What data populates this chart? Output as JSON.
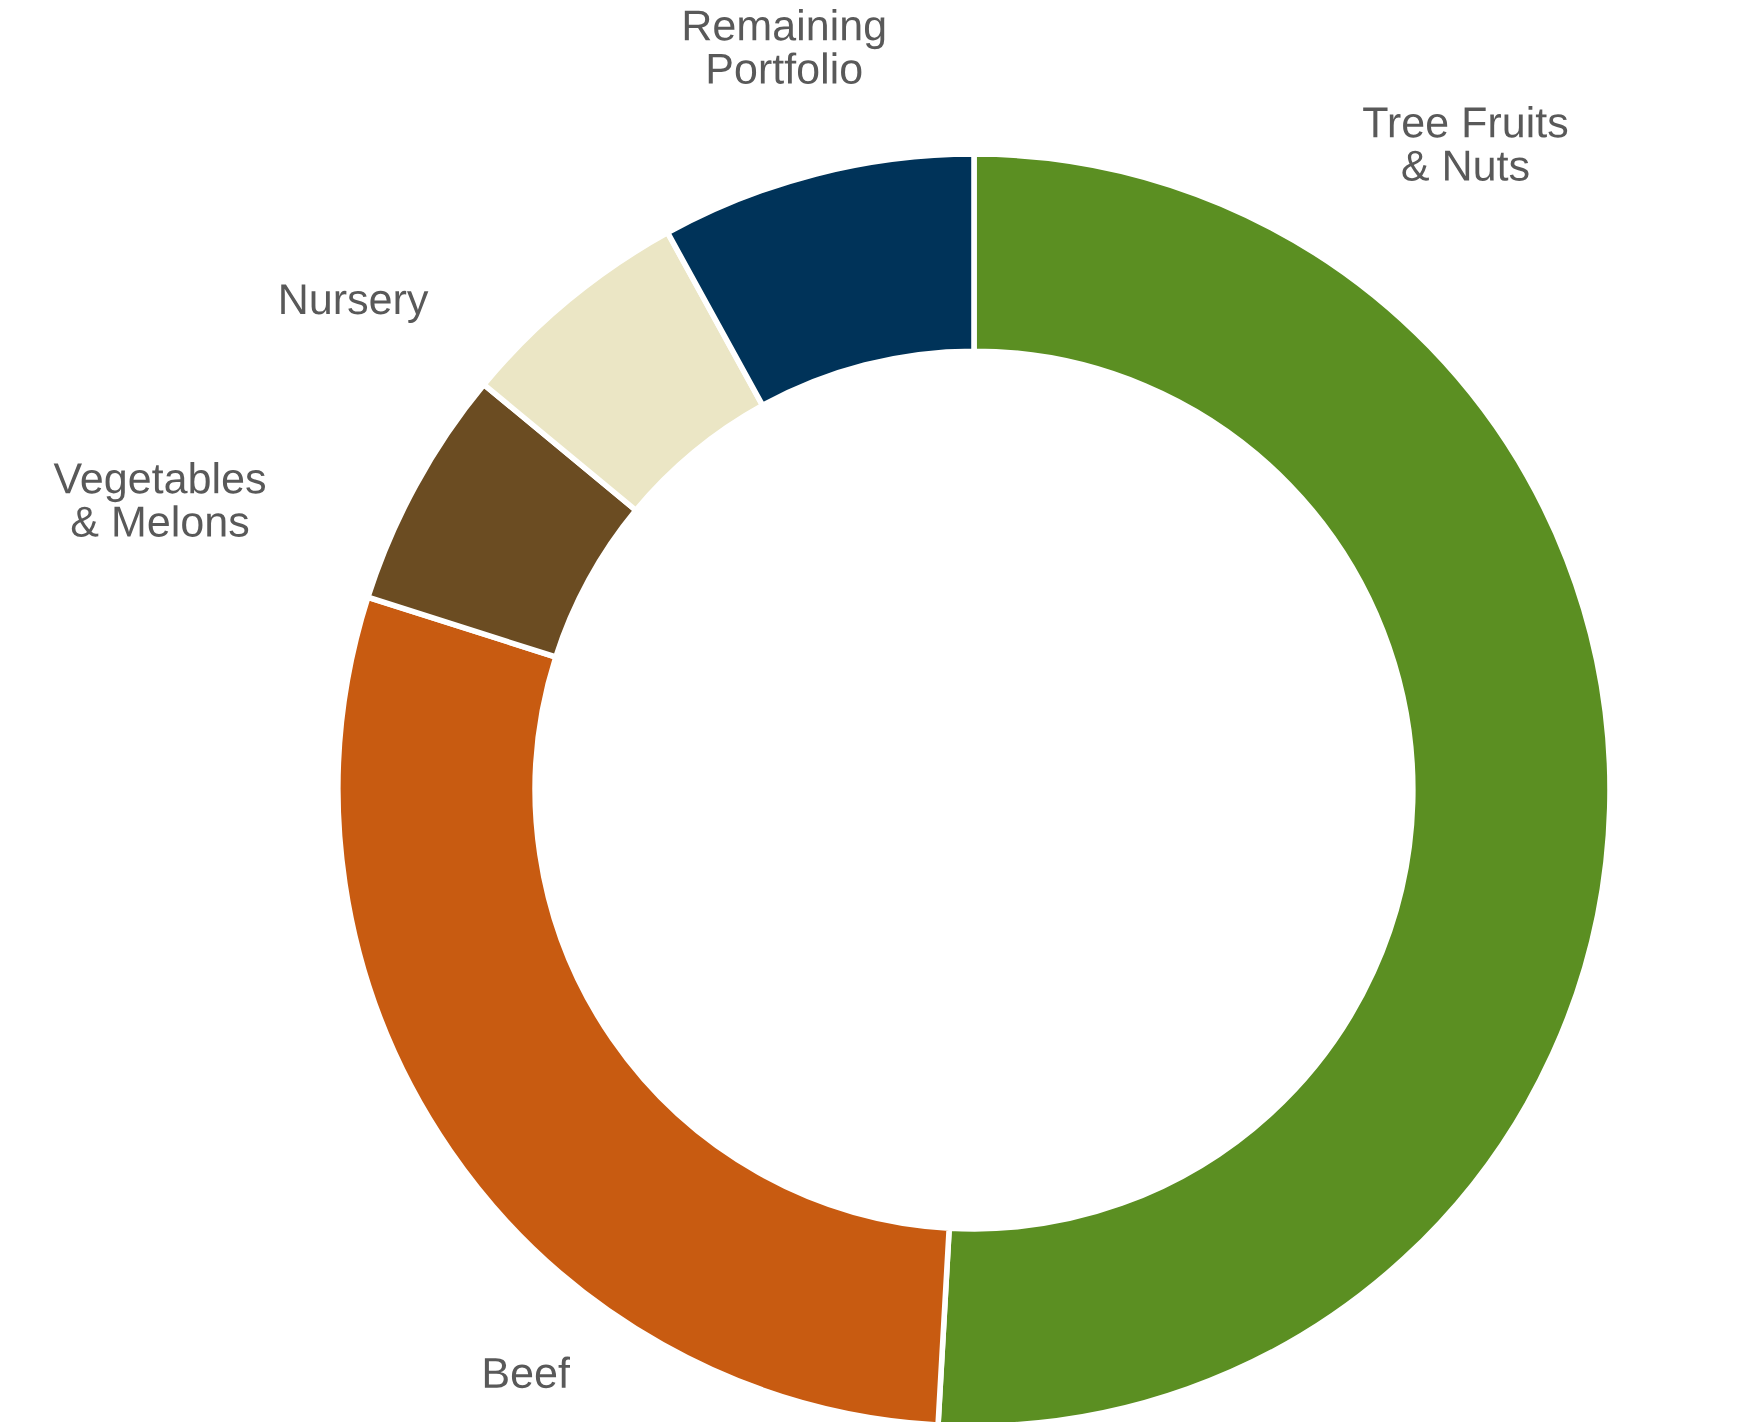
{
  "chart_data": {
    "type": "donut",
    "categories": [
      "Tree Fruits & Nuts",
      "Beef",
      "Vegetables & Melons",
      "Nursery",
      "Remaining Portfolio"
    ],
    "values": [
      50.9,
      29.0,
      6.1,
      6.0,
      8.0
    ],
    "colors": [
      "#5b8f22",
      "#c85b11",
      "#6b4c22",
      "#ebe6c5",
      "#003359"
    ],
    "legend": false
  }
}
